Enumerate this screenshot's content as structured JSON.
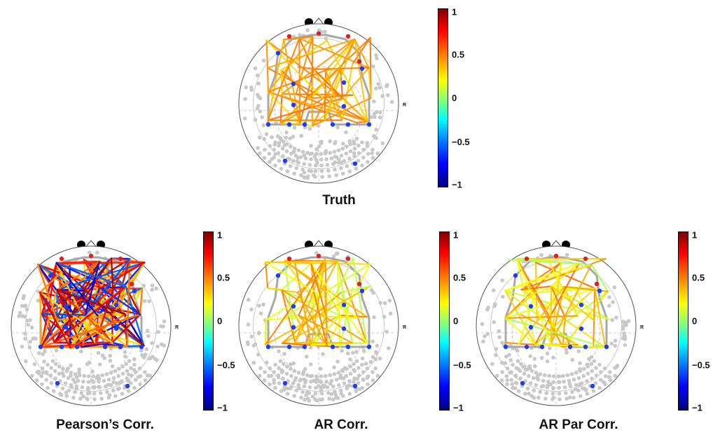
{
  "panels": [
    {
      "id": "truth",
      "title": "Truth",
      "edge_style": "truth"
    },
    {
      "id": "pearson",
      "title": "Pearson’s Corr.",
      "edge_style": "pearson"
    },
    {
      "id": "ar",
      "title": "AR Corr.",
      "edge_style": "ar"
    },
    {
      "id": "arpar",
      "title": "AR Par Corr.",
      "edge_style": "arpar"
    }
  ],
  "colorbar": {
    "ticks": [
      "1",
      "0.5",
      "0",
      "−0.5",
      "−1"
    ],
    "marker_label": "R"
  },
  "colors": {
    "grid_dots": "#c8c8c8",
    "skeleton": "#a8a8a8",
    "node_blue": "#1a3cff",
    "node_red": "#e02020"
  }
}
